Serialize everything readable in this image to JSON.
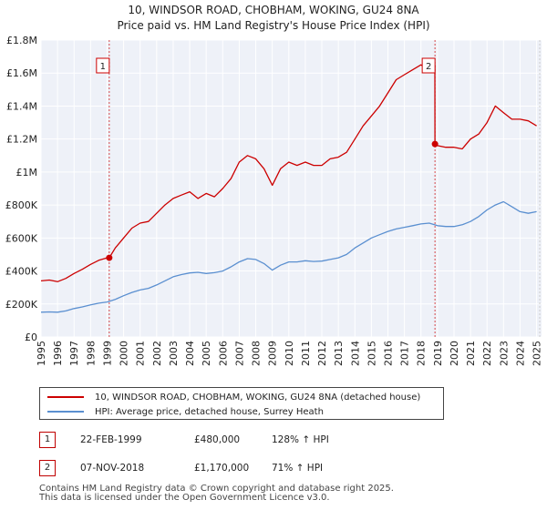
{
  "chart_data": {
    "type": "line",
    "title": "10, WINDSOR ROAD, CHOBHAM, WOKING, GU24 8NA",
    "subtitle": "Price paid vs. HM Land Registry's House Price Index (HPI)",
    "xlabel": "",
    "ylabel": "",
    "xlim": [
      1995,
      2025.3
    ],
    "ylim": [
      0,
      1800000
    ],
    "yticks": [
      0,
      200000,
      400000,
      600000,
      800000,
      1000000,
      1200000,
      1400000,
      1600000,
      1800000
    ],
    "ytick_labels": [
      "£0",
      "£200K",
      "£400K",
      "£600K",
      "£800K",
      "£1M",
      "£1.2M",
      "£1.4M",
      "£1.6M",
      "£1.8M"
    ],
    "xticks": [
      1995,
      1996,
      1997,
      1998,
      1999,
      2000,
      2001,
      2002,
      2003,
      2004,
      2005,
      2006,
      2007,
      2008,
      2009,
      2010,
      2011,
      2012,
      2013,
      2014,
      2015,
      2016,
      2017,
      2018,
      2019,
      2020,
      2021,
      2022,
      2023,
      2024,
      2025
    ],
    "xtick_labels": [
      "1995",
      "1996",
      "1997",
      "1998",
      "1999",
      "2000",
      "2001",
      "2002",
      "2003",
      "2004",
      "2005",
      "2006",
      "2007",
      "2008",
      "2009",
      "2010",
      "2011",
      "2012",
      "2013",
      "2014",
      "2015",
      "2016",
      "2017",
      "2018",
      "2019",
      "2020",
      "2021",
      "2022",
      "2023",
      "2024",
      "2025"
    ],
    "grid": true,
    "series": [
      {
        "name": "10, WINDSOR ROAD, CHOBHAM, WOKING, GU24 8NA (detached house)",
        "color": "#cc0000",
        "x": [
          1995.0,
          1995.5,
          1996.0,
          1996.5,
          1997.0,
          1997.5,
          1998.0,
          1998.5,
          1999.0,
          1999.13,
          1999.5,
          2000.0,
          2000.5,
          2001.0,
          2001.5,
          2002.0,
          2002.5,
          2003.0,
          2003.5,
          2004.0,
          2004.5,
          2005.0,
          2005.5,
          2006.0,
          2006.5,
          2007.0,
          2007.5,
          2008.0,
          2008.5,
          2009.0,
          2009.5,
          2010.0,
          2010.5,
          2011.0,
          2011.5,
          2012.0,
          2012.5,
          2013.0,
          2013.5,
          2014.0,
          2014.5,
          2015.0,
          2015.5,
          2016.0,
          2016.5,
          2017.0,
          2017.5,
          2018.0,
          2018.5,
          2018.84,
          2018.85,
          2019.0,
          2019.5,
          2020.0,
          2020.5,
          2021.0,
          2021.5,
          2022.0,
          2022.5,
          2023.0,
          2023.5,
          2024.0,
          2024.5,
          2025.0
        ],
        "values": [
          340000,
          345000,
          335000,
          355000,
          385000,
          410000,
          440000,
          465000,
          480000,
          480000,
          540000,
          600000,
          660000,
          690000,
          700000,
          750000,
          800000,
          840000,
          860000,
          880000,
          840000,
          870000,
          850000,
          900000,
          960000,
          1060000,
          1100000,
          1080000,
          1020000,
          920000,
          1020000,
          1060000,
          1040000,
          1060000,
          1040000,
          1040000,
          1080000,
          1090000,
          1120000,
          1200000,
          1280000,
          1340000,
          1400000,
          1480000,
          1560000,
          1590000,
          1620000,
          1650000,
          1620000,
          1650000,
          1170000,
          1160000,
          1150000,
          1150000,
          1140000,
          1200000,
          1230000,
          1300000,
          1400000,
          1360000,
          1320000,
          1320000,
          1310000,
          1280000
        ]
      },
      {
        "name": "HPI: Average price, detached house, Surrey Heath",
        "color": "#5a8fd0",
        "x": [
          1995.0,
          1995.5,
          1996.0,
          1996.5,
          1997.0,
          1997.5,
          1998.0,
          1998.5,
          1999.0,
          1999.5,
          2000.0,
          2000.5,
          2001.0,
          2001.5,
          2002.0,
          2002.5,
          2003.0,
          2003.5,
          2004.0,
          2004.5,
          2005.0,
          2005.5,
          2006.0,
          2006.5,
          2007.0,
          2007.5,
          2008.0,
          2008.5,
          2009.0,
          2009.5,
          2010.0,
          2010.5,
          2011.0,
          2011.5,
          2012.0,
          2012.5,
          2013.0,
          2013.5,
          2014.0,
          2014.5,
          2015.0,
          2015.5,
          2016.0,
          2016.5,
          2017.0,
          2017.5,
          2018.0,
          2018.5,
          2019.0,
          2019.5,
          2020.0,
          2020.5,
          2021.0,
          2021.5,
          2022.0,
          2022.5,
          2023.0,
          2023.5,
          2024.0,
          2024.5,
          2025.0
        ],
        "values": [
          150000,
          152000,
          150000,
          158000,
          172000,
          182000,
          195000,
          205000,
          212000,
          228000,
          250000,
          270000,
          285000,
          295000,
          315000,
          340000,
          365000,
          378000,
          388000,
          392000,
          385000,
          390000,
          400000,
          425000,
          455000,
          475000,
          470000,
          445000,
          405000,
          435000,
          455000,
          455000,
          462000,
          458000,
          460000,
          470000,
          480000,
          500000,
          540000,
          570000,
          600000,
          620000,
          640000,
          655000,
          665000,
          675000,
          685000,
          690000,
          675000,
          670000,
          670000,
          680000,
          700000,
          730000,
          770000,
          800000,
          820000,
          790000,
          760000,
          750000,
          760000
        ]
      }
    ],
    "annotations": [
      {
        "label": "1",
        "x": 1999.13,
        "y": 480000
      },
      {
        "label": "2",
        "x": 2018.85,
        "y": 1170000
      }
    ]
  },
  "legend": {
    "entries": [
      {
        "label": "10, WINDSOR ROAD, CHOBHAM, WOKING, GU24 8NA (detached house)",
        "color": "#cc0000"
      },
      {
        "label": "HPI: Average price, detached house, Surrey Heath",
        "color": "#5a8fd0"
      }
    ]
  },
  "transactions": [
    {
      "num": "1",
      "date": "22-FEB-1999",
      "price": "£480,000",
      "hpi": "128% ↑ HPI"
    },
    {
      "num": "2",
      "date": "07-NOV-2018",
      "price": "£1,170,000",
      "hpi": "71% ↑ HPI"
    }
  ],
  "footer": {
    "line1": "Contains HM Land Registry data © Crown copyright and database right 2025.",
    "line2": "This data is licensed under the Open Government Licence v3.0."
  }
}
